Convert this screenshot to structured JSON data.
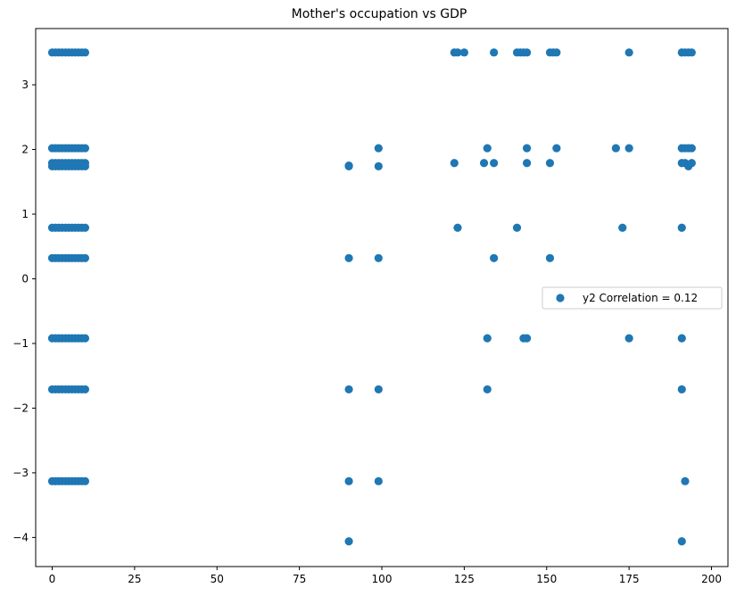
{
  "chart_data": {
    "type": "scatter",
    "title": "Mother's occupation vs GDP",
    "xlabel": "",
    "ylabel": "",
    "xlim": [
      -5,
      205
    ],
    "ylim": [
      -4.45,
      3.87
    ],
    "x_ticks": [
      0,
      25,
      50,
      75,
      100,
      125,
      150,
      175,
      200
    ],
    "y_ticks": [
      -4,
      -3,
      -2,
      -1,
      0,
      1,
      2,
      3
    ],
    "grid": false,
    "legend_position": "center-right",
    "series": [
      {
        "name": "y2 Correlation = 0.12",
        "color": "#1f77b4",
        "x": [
          0,
          1,
          2,
          3,
          4,
          5,
          6,
          7,
          8,
          9,
          10,
          0,
          1,
          2,
          3,
          4,
          5,
          6,
          7,
          8,
          9,
          10,
          0,
          1,
          2,
          3,
          4,
          5,
          6,
          7,
          8,
          9,
          10,
          0,
          1,
          2,
          3,
          4,
          5,
          6,
          7,
          8,
          9,
          10,
          0,
          1,
          2,
          3,
          4,
          5,
          6,
          7,
          8,
          9,
          10,
          0,
          1,
          2,
          3,
          4,
          5,
          6,
          7,
          8,
          9,
          10,
          0,
          1,
          2,
          3,
          4,
          5,
          6,
          7,
          8,
          9,
          10,
          0,
          1,
          2,
          3,
          4,
          5,
          6,
          7,
          8,
          9,
          10,
          0,
          1,
          2,
          3,
          4,
          5,
          6,
          7,
          8,
          9,
          10,
          90,
          90,
          90,
          90,
          90,
          90,
          99,
          99,
          99,
          99,
          99,
          122,
          123,
          125,
          134,
          141,
          142,
          143,
          144,
          151,
          152,
          153,
          175,
          191,
          192,
          193,
          194,
          132,
          144,
          153,
          171,
          175,
          191,
          192,
          193,
          194,
          122,
          131,
          134,
          144,
          151,
          191,
          192,
          193,
          194,
          123,
          141,
          173,
          191,
          134,
          151,
          132,
          143,
          144,
          175,
          191,
          132,
          191,
          192,
          191
        ],
        "y": [
          3.5,
          3.5,
          3.5,
          3.5,
          3.5,
          3.5,
          3.5,
          3.5,
          3.5,
          3.5,
          3.5,
          2.02,
          2.02,
          2.02,
          2.02,
          2.02,
          2.02,
          2.02,
          2.02,
          2.02,
          2.02,
          2.02,
          1.79,
          1.79,
          1.79,
          1.79,
          1.79,
          1.79,
          1.79,
          1.79,
          1.79,
          1.79,
          1.79,
          1.74,
          1.74,
          1.74,
          1.74,
          1.74,
          1.74,
          1.74,
          1.74,
          1.74,
          1.74,
          1.74,
          0.79,
          0.79,
          0.79,
          0.79,
          0.79,
          0.79,
          0.79,
          0.79,
          0.79,
          0.79,
          0.79,
          0.32,
          0.32,
          0.32,
          0.32,
          0.32,
          0.32,
          0.32,
          0.32,
          0.32,
          0.32,
          0.32,
          -0.92,
          -0.92,
          -0.92,
          -0.92,
          -0.92,
          -0.92,
          -0.92,
          -0.92,
          -0.92,
          -0.92,
          -0.92,
          -1.71,
          -1.71,
          -1.71,
          -1.71,
          -1.71,
          -1.71,
          -1.71,
          -1.71,
          -1.71,
          -1.71,
          -1.71,
          -3.13,
          -3.13,
          -3.13,
          -3.13,
          -3.13,
          -3.13,
          -3.13,
          -3.13,
          -3.13,
          -3.13,
          -3.13,
          1.74,
          1.75,
          0.32,
          -1.71,
          -3.13,
          -4.06,
          2.02,
          1.74,
          0.32,
          -1.71,
          -3.13,
          3.5,
          3.5,
          3.5,
          3.5,
          3.5,
          3.5,
          3.5,
          3.5,
          3.5,
          3.5,
          3.5,
          3.5,
          3.5,
          3.5,
          3.5,
          3.5,
          2.02,
          2.02,
          2.02,
          2.02,
          2.02,
          2.02,
          2.02,
          2.02,
          2.02,
          1.79,
          1.79,
          1.79,
          1.79,
          1.79,
          1.79,
          1.79,
          1.74,
          1.79,
          0.79,
          0.79,
          0.79,
          0.79,
          0.32,
          0.32,
          -0.92,
          -0.92,
          -0.92,
          -0.92,
          -0.92,
          -1.71,
          -1.71,
          -3.13,
          -4.06
        ]
      }
    ]
  }
}
